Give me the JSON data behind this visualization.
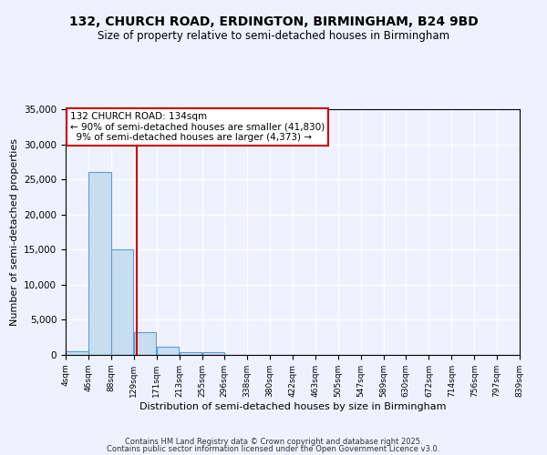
{
  "title": "132, CHURCH ROAD, ERDINGTON, BIRMINGHAM, B24 9BD",
  "subtitle": "Size of property relative to semi-detached houses in Birmingham",
  "xlabel": "Distribution of semi-detached houses by size in Birmingham",
  "ylabel": "Number of semi-detached properties",
  "bin_edges": [
    4,
    46,
    88,
    129,
    171,
    213,
    255,
    296,
    338,
    380,
    422,
    463,
    505,
    547,
    589,
    630,
    672,
    714,
    756,
    797,
    839
  ],
  "bar_heights": [
    500,
    26100,
    15100,
    3200,
    1200,
    450,
    350,
    0,
    0,
    0,
    0,
    0,
    0,
    0,
    0,
    0,
    0,
    0,
    0,
    0
  ],
  "bar_color": "#c9ddf0",
  "bar_edgecolor": "#5b9bd5",
  "property_size": 134,
  "property_label": "132 CHURCH ROAD: 134sqm",
  "pct_smaller": 90,
  "count_smaller": 41830,
  "pct_larger": 9,
  "count_larger": 4373,
  "annotation_box_color": "#cc0000",
  "vline_color": "#cc0000",
  "ylim": [
    0,
    35000
  ],
  "yticks": [
    0,
    5000,
    10000,
    15000,
    20000,
    25000,
    30000,
    35000
  ],
  "background_color": "#eef2ff",
  "grid_color": "#ffffff",
  "footer_line1": "Contains HM Land Registry data © Crown copyright and database right 2025.",
  "footer_line2": "Contains public sector information licensed under the Open Government Licence v3.0."
}
